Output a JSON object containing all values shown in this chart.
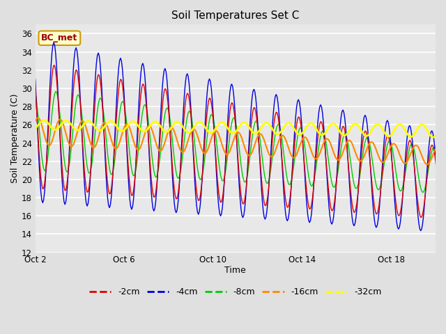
{
  "title": "Soil Temperatures Set C",
  "xlabel": "Time",
  "ylabel": "Soil Temperature (C)",
  "ylim": [
    12,
    37
  ],
  "yticks": [
    12,
    14,
    16,
    18,
    20,
    22,
    24,
    26,
    28,
    30,
    32,
    34,
    36
  ],
  "background_color": "#e0e0e0",
  "plot_bg_color": "#e8e8e8",
  "annotation_text": "BC_met",
  "annotation_bg": "#ffffcc",
  "annotation_border": "#cc9900",
  "annotation_text_color": "#990000",
  "colors": {
    "-2cm": "#dd0000",
    "-4cm": "#0000dd",
    "-8cm": "#00cc00",
    "-16cm": "#ff8800",
    "-32cm": "#ffff00"
  },
  "x_ticks_days": [
    0,
    4,
    8,
    12,
    16
  ],
  "x_tick_labels": [
    "Oct 2",
    "Oct 6",
    "Oct 10",
    "Oct 14",
    "Oct 18"
  ]
}
